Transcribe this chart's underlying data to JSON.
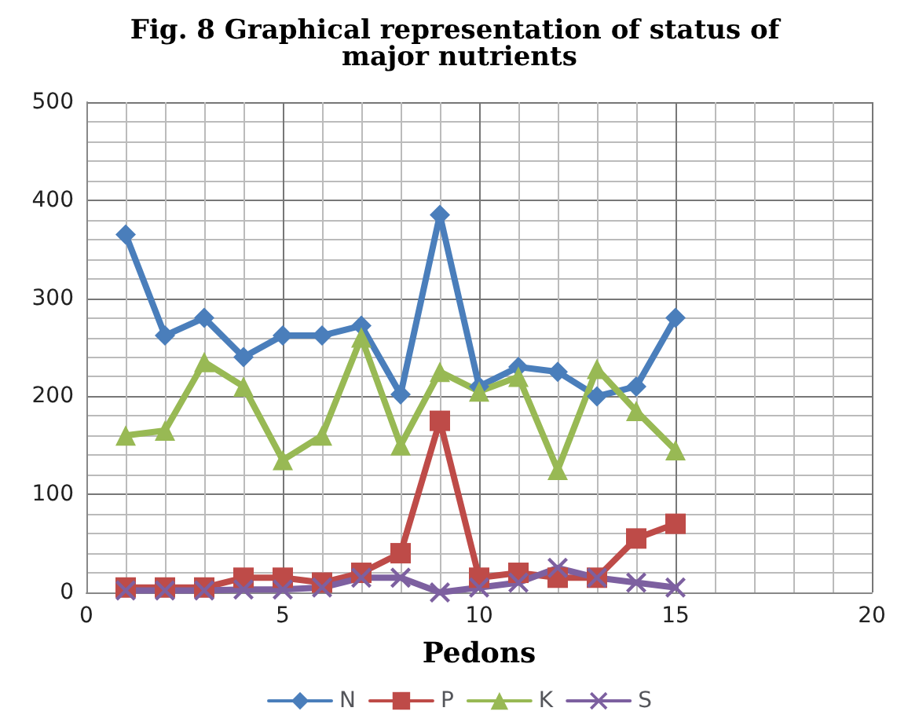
{
  "chart_data": {
    "type": "line",
    "title": "Fig. 8 Graphical representation of status of major nutrients",
    "xlabel": "Pedons",
    "x": [
      1,
      2,
      3,
      4,
      5,
      6,
      7,
      8,
      9,
      10,
      11,
      12,
      13,
      14,
      15
    ],
    "series": [
      {
        "name": "N",
        "color": "#4a7ebb",
        "marker": "diamond",
        "values": [
          365,
          262,
          280,
          240,
          262,
          262,
          272,
          202,
          385,
          210,
          230,
          225,
          200,
          210,
          280
        ]
      },
      {
        "name": "P",
        "color": "#be4b48",
        "marker": "square",
        "values": [
          5,
          5,
          5,
          15,
          15,
          10,
          20,
          40,
          175,
          15,
          20,
          15,
          15,
          55,
          70
        ]
      },
      {
        "name": "K",
        "color": "#98b954",
        "marker": "triangle",
        "values": [
          160,
          165,
          235,
          210,
          135,
          160,
          260,
          150,
          225,
          205,
          220,
          125,
          228,
          185,
          145
        ]
      },
      {
        "name": "S",
        "color": "#7d60a0",
        "marker": "cross",
        "values": [
          2,
          2,
          2,
          3,
          3,
          5,
          15,
          15,
          0,
          5,
          10,
          25,
          15,
          10,
          5
        ]
      }
    ],
    "xlim": [
      0,
      20
    ],
    "xticks": [
      0,
      5,
      10,
      15,
      20
    ],
    "ylim": [
      0,
      500
    ],
    "yticks": [
      0,
      100,
      200,
      300,
      400,
      500
    ],
    "grid": true,
    "legend": "bottom"
  }
}
